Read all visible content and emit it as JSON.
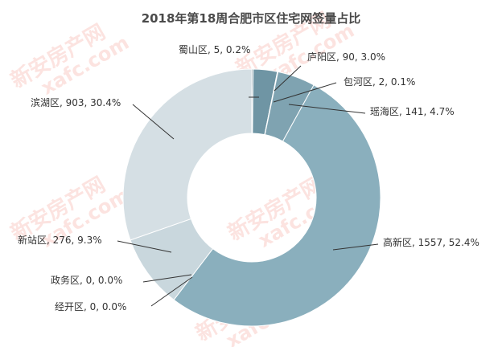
{
  "watermark": {
    "brand": "新安房产网",
    "domain": "xafc.com",
    "color": "#e8503a"
  },
  "chart_data": {
    "type": "pie",
    "variant": "donut",
    "title": "2018年第18周合肥市区住宅网签量占比",
    "slices": [
      {
        "name": "蜀山区",
        "value": 5,
        "percent": "0.2%",
        "label": "蜀山区, 5, 0.2%",
        "color": "#6c8a96"
      },
      {
        "name": "庐阳区",
        "value": 90,
        "percent": "3.0%",
        "label": "庐阳区, 90, 3.0%",
        "color": "#6f95a4"
      },
      {
        "name": "包河区",
        "value": 2,
        "percent": "0.1%",
        "label": "包河区, 2, 0.1%",
        "color": "#7aa0ae"
      },
      {
        "name": "瑶海区",
        "value": 141,
        "percent": "4.7%",
        "label": "瑶海区, 141, 4.7%",
        "color": "#7fa3b1"
      },
      {
        "name": "高新区",
        "value": 1557,
        "percent": "52.4%",
        "label": "高新区, 1557, 52.4%",
        "color": "#8aafbd"
      },
      {
        "name": "经开区",
        "value": 0,
        "percent": "0.0%",
        "label": "经开区, 0, 0.0%",
        "color": "#b3c7cf"
      },
      {
        "name": "政务区",
        "value": 0,
        "percent": "0.0%",
        "label": "政务区, 0, 0.0%",
        "color": "#bfd0d7"
      },
      {
        "name": "新站区",
        "value": 276,
        "percent": "9.3%",
        "label": "新站区, 276, 9.3%",
        "color": "#c9d7dd"
      },
      {
        "name": "滨湖区",
        "value": 903,
        "percent": "30.4%",
        "label": "滨湖区, 903, 30.4%",
        "color": "#d5dfe4"
      }
    ]
  }
}
